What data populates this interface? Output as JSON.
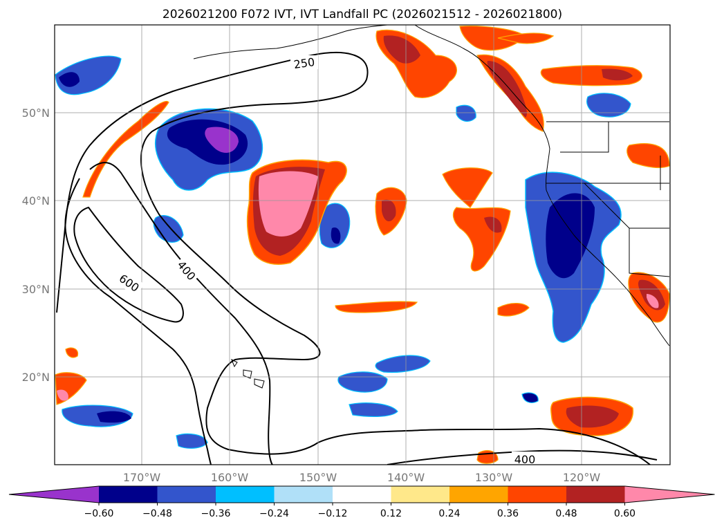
{
  "title": "2026021200 F072 IVT, IVT Landfall PC (2026021512 - 2026021800)",
  "map": {
    "lon_range": [
      -180,
      -110
    ],
    "lat_range": [
      10,
      60
    ],
    "lat_labels": [
      "50°N",
      "40°N",
      "30°N",
      "20°N"
    ],
    "lon_labels": [
      "170°W",
      "160°W",
      "150°W",
      "140°W",
      "130°W",
      "120°W"
    ],
    "contour_labels": [
      "250",
      "400",
      "600",
      "400"
    ],
    "ivt_contour_levels": [
      250,
      400,
      600
    ]
  },
  "colorbar": {
    "levels": [
      "−0.60",
      "−0.48",
      "−0.36",
      "−0.24",
      "−0.12",
      "0.12",
      "0.24",
      "0.36",
      "0.48",
      "0.60"
    ],
    "colors": [
      "#9933cc",
      "#00008b",
      "#3355cc",
      "#00bfff",
      "#b0e0f8",
      "#ffffff",
      "#ffe88a",
      "#ffa500",
      "#ff4500",
      "#b22222",
      "#ff88aa"
    ],
    "extend": "both"
  },
  "chart_data": {
    "type": "heatmap",
    "title": "2026021200 F072 IVT, IVT Landfall PC (2026021512 - 2026021800)",
    "x_axis": {
      "label": "",
      "range": [
        -180,
        -110
      ],
      "ticks": [
        -170,
        -160,
        -150,
        -140,
        -130,
        -120
      ]
    },
    "y_axis": {
      "label": "",
      "range": [
        10,
        60
      ],
      "ticks": [
        20,
        30,
        40,
        50
      ]
    },
    "colorbar_levels": [
      -0.6,
      -0.48,
      -0.36,
      -0.24,
      -0.12,
      0.12,
      0.24,
      0.36,
      0.48,
      0.6
    ],
    "contours": [
      {
        "value": 250
      },
      {
        "value": 400
      },
      {
        "value": 600
      }
    ],
    "grid": true
  }
}
